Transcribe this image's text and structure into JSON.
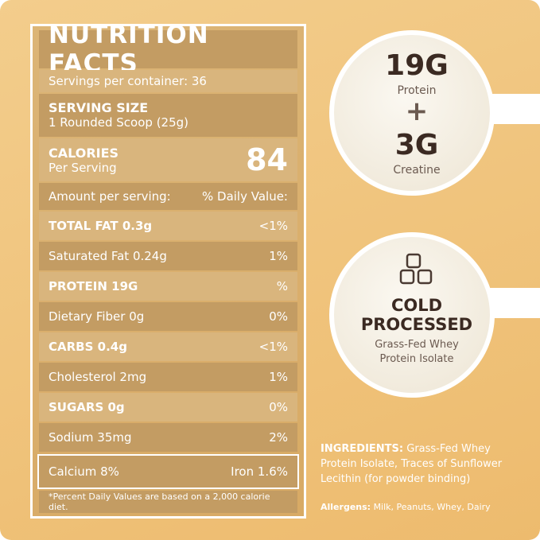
{
  "title": "NUTRITION FACTS",
  "servings": "Servings per container: 36",
  "serving_size": {
    "label": "SERVING SIZE",
    "value": "1 Rounded Scoop (25g)"
  },
  "calories": {
    "label": "CALORIES",
    "sub": "Per Serving",
    "value": "84"
  },
  "header": {
    "left": "Amount per serving:",
    "right": "% Daily Value:"
  },
  "rows": [
    {
      "name": "TOTAL FAT 0.3g",
      "dv": "<1%"
    },
    {
      "name": "Saturated Fat 0.24g",
      "dv": "1%"
    },
    {
      "name": "PROTEIN 19G",
      "dv": "%"
    },
    {
      "name": "Dietary Fiber 0g",
      "dv": "0%"
    },
    {
      "name": "CARBS 0.4g",
      "dv": "<1%"
    },
    {
      "name": "Cholesterol 2mg",
      "dv": "1%"
    },
    {
      "name": "SUGARS 0g",
      "dv": "0%"
    },
    {
      "name": "Sodium 35mg",
      "dv": "2%"
    }
  ],
  "minerals": {
    "left": "Calcium 8%",
    "right": "Iron 1.6%"
  },
  "footnote": "*Percent Daily Values are based on a 2,000 calorie diet.",
  "badges": [
    {
      "lines": [
        "19G",
        "Protein",
        "+",
        "3G",
        "Creatine"
      ]
    },
    {
      "lines": [
        "COLD",
        "PROCESSED",
        "Grass-Fed Whey",
        "Protein Isolate"
      ]
    }
  ],
  "ingredients": {
    "label": "INGREDIENTS:",
    "text": "Grass-Fed Whey Protein Isolate, Traces of Sunflower Lecithin (for powder binding)"
  },
  "allergens": {
    "label": "Allergens:",
    "text": "Milk, Peanuts, Whey, Dairy"
  }
}
